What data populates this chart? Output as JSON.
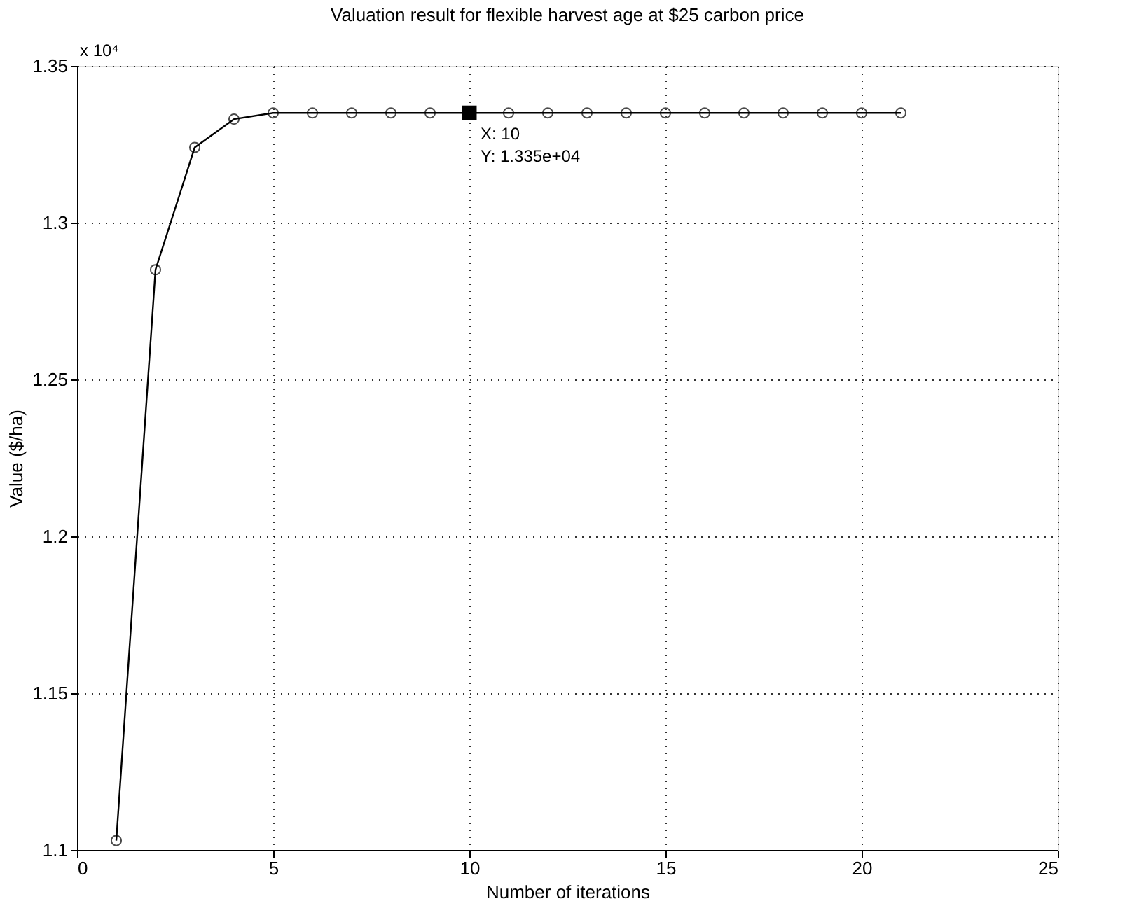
{
  "chart_data": {
    "type": "line",
    "title": "Valuation result for flexible harvest age at $25 carbon price",
    "xlabel": "Number of iterations",
    "ylabel": "Value ($/ha)",
    "x": [
      1,
      2,
      3,
      4,
      5,
      6,
      7,
      8,
      9,
      10,
      11,
      12,
      13,
      14,
      15,
      16,
      17,
      18,
      19,
      20,
      21
    ],
    "series": [
      {
        "color": "#000000",
        "values": [
          1.103,
          1.285,
          1.324,
          1.333,
          1.335,
          1.335,
          1.335,
          1.335,
          1.335,
          1.335,
          1.335,
          1.335,
          1.335,
          1.335,
          1.335,
          1.335,
          1.335,
          1.335,
          1.335,
          1.335,
          1.335
        ]
      }
    ],
    "xlim": [
      0,
      25
    ],
    "xticks": [
      0,
      5,
      10,
      15,
      20,
      25
    ],
    "ylim": [
      1.1,
      1.35
    ],
    "yticks": [
      1.1,
      1.15,
      1.2,
      1.25,
      1.3,
      1.35
    ],
    "grid": true,
    "marker": "circle",
    "line_style": "solid",
    "annotations": [
      "x 10⁴",
      {
        "text": "X: 10\nY: 1.335e+04",
        "x": 10,
        "y": 1.335
      }
    ]
  }
}
